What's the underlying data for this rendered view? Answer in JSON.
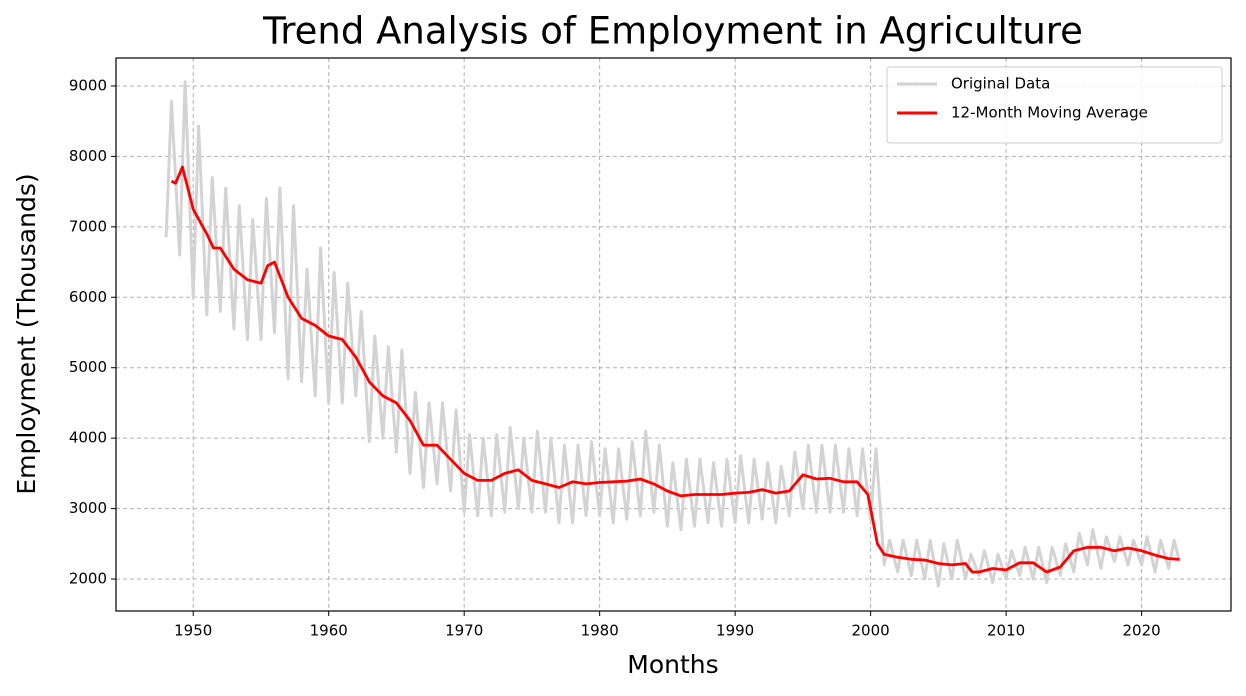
{
  "chart_data": {
    "type": "line",
    "title": "Trend Analysis of Employment in Agriculture",
    "xlabel": "Months",
    "ylabel": "Employment (Thousands)",
    "xlim": [
      1944.3,
      2026.6
    ],
    "xticks": [
      1950,
      1960,
      1970,
      1980,
      1990,
      2000,
      2010,
      2020
    ],
    "ylim": [
      1546,
      9397
    ],
    "yticks": [
      2000,
      3000,
      4000,
      5000,
      6000,
      7000,
      8000,
      9000
    ],
    "grid": true,
    "legend": "upper right",
    "series": [
      {
        "name": "Original Data",
        "color": "#d3d3d3",
        "x": [
          1948.0,
          1948.4,
          1949.0,
          1949.4,
          1950.0,
          1950.4,
          1951.0,
          1951.4,
          1952.0,
          1952.4,
          1953.0,
          1953.4,
          1954.0,
          1954.4,
          1955.0,
          1955.4,
          1956.0,
          1956.4,
          1957.0,
          1957.4,
          1958.0,
          1958.4,
          1959.0,
          1959.4,
          1960.0,
          1960.4,
          1961.0,
          1961.4,
          1962.0,
          1962.4,
          1963.0,
          1963.4,
          1964.0,
          1964.4,
          1965.0,
          1965.4,
          1966.0,
          1966.4,
          1967.0,
          1967.4,
          1968.0,
          1968.4,
          1969.0,
          1969.4,
          1970.0,
          1970.4,
          1971.0,
          1971.4,
          1972.0,
          1972.4,
          1973.0,
          1973.4,
          1974.0,
          1974.4,
          1975.0,
          1975.4,
          1976.0,
          1976.4,
          1977.0,
          1977.4,
          1978.0,
          1978.4,
          1979.0,
          1979.4,
          1980.0,
          1980.4,
          1981.0,
          1981.4,
          1982.0,
          1982.4,
          1983.0,
          1983.4,
          1984.0,
          1984.4,
          1985.0,
          1985.4,
          1986.0,
          1986.4,
          1987.0,
          1987.4,
          1988.0,
          1988.4,
          1989.0,
          1989.4,
          1990.0,
          1990.4,
          1991.0,
          1991.4,
          1992.0,
          1992.4,
          1993.0,
          1993.4,
          1994.0,
          1994.4,
          1995.0,
          1995.4,
          1996.0,
          1996.4,
          1997.0,
          1997.4,
          1998.0,
          1998.4,
          1999.0,
          1999.4,
          2000.0,
          2000.4,
          2001.0,
          2001.4,
          2002.0,
          2002.4,
          2003.0,
          2003.4,
          2004.0,
          2004.4,
          2005.0,
          2005.4,
          2006.0,
          2006.4,
          2007.0,
          2007.4,
          2008.0,
          2008.4,
          2009.0,
          2009.4,
          2010.0,
          2010.4,
          2011.0,
          2011.4,
          2012.0,
          2012.4,
          2013.0,
          2013.4,
          2014.0,
          2014.4,
          2015.0,
          2015.4,
          2016.0,
          2016.4,
          2017.0,
          2017.4,
          2018.0,
          2018.4,
          2019.0,
          2019.4,
          2020.0,
          2020.4,
          2021.0,
          2021.4,
          2022.0,
          2022.4,
          2022.8
        ],
        "values": [
          6850,
          8780,
          6600,
          9060,
          6000,
          8430,
          5750,
          7700,
          5800,
          7550,
          5550,
          7300,
          5400,
          7100,
          5400,
          7400,
          5500,
          7550,
          4850,
          7300,
          4800,
          6400,
          4600,
          6700,
          4500,
          6350,
          4500,
          6200,
          4600,
          5800,
          3950,
          5450,
          4000,
          5300,
          3800,
          5250,
          3500,
          4650,
          3300,
          4500,
          3350,
          4500,
          3250,
          4400,
          2950,
          4050,
          2900,
          4000,
          2900,
          4050,
          2950,
          4150,
          3000,
          4000,
          2950,
          4100,
          2950,
          4000,
          2800,
          3900,
          2800,
          3900,
          2900,
          3950,
          2900,
          3850,
          2800,
          3850,
          2850,
          3950,
          2900,
          4100,
          2950,
          3900,
          2750,
          3650,
          2700,
          3700,
          2750,
          3700,
          2800,
          3650,
          2750,
          3700,
          2800,
          3750,
          2800,
          3700,
          2850,
          3650,
          2800,
          3600,
          2900,
          3800,
          3000,
          3900,
          2950,
          3900,
          2950,
          3900,
          2950,
          3850,
          2900,
          3850,
          2850,
          3850,
          2200,
          2550,
          2100,
          2550,
          2050,
          2550,
          2000,
          2550,
          1900,
          2500,
          2000,
          2550,
          2000,
          2350,
          2050,
          2400,
          1950,
          2350,
          2000,
          2400,
          2050,
          2450,
          2000,
          2450,
          1950,
          2450,
          2050,
          2500,
          2100,
          2650,
          2200,
          2700,
          2150,
          2600,
          2250,
          2600,
          2200,
          2550,
          2200,
          2600,
          2100,
          2550,
          2150,
          2550,
          2250
        ]
      },
      {
        "name": "12-Month Moving Average",
        "color": "#ff0000",
        "x": [
          1948.4,
          1948.7,
          1949.2,
          1950.0,
          1951.0,
          1951.5,
          1952.0,
          1953.0,
          1954.0,
          1955.0,
          1955.5,
          1956.0,
          1957.0,
          1958.0,
          1959.0,
          1960.0,
          1961.0,
          1962.0,
          1963.0,
          1964.0,
          1965.0,
          1966.0,
          1967.0,
          1968.0,
          1969.0,
          1970.0,
          1971.0,
          1972.0,
          1973.0,
          1974.0,
          1975.0,
          1976.0,
          1977.0,
          1978.0,
          1979.0,
          1980.0,
          1981.0,
          1982.0,
          1983.0,
          1984.0,
          1985.0,
          1986.0,
          1987.0,
          1988.0,
          1989.0,
          1990.0,
          1991.0,
          1992.0,
          1993.0,
          1994.0,
          1995.0,
          1996.0,
          1997.0,
          1998.0,
          1999.0,
          1999.8,
          2000.5,
          2001.0,
          2002.0,
          2003.0,
          2004.0,
          2005.0,
          2006.0,
          2007.0,
          2007.5,
          2008.0,
          2009.0,
          2010.0,
          2011.0,
          2012.0,
          2013.0,
          2014.0,
          2015.0,
          2016.0,
          2017.0,
          2018.0,
          2019.0,
          2020.0,
          2021.0,
          2022.0,
          2022.8
        ],
        "values": [
          7650,
          7620,
          7850,
          7250,
          6900,
          6700,
          6700,
          6400,
          6250,
          6200,
          6450,
          6500,
          6000,
          5700,
          5600,
          5450,
          5400,
          5150,
          4800,
          4600,
          4500,
          4250,
          3900,
          3900,
          3700,
          3500,
          3400,
          3400,
          3500,
          3550,
          3400,
          3350,
          3300,
          3380,
          3350,
          3370,
          3380,
          3390,
          3420,
          3350,
          3250,
          3180,
          3200,
          3200,
          3200,
          3220,
          3230,
          3270,
          3220,
          3250,
          3480,
          3420,
          3430,
          3380,
          3380,
          3200,
          2500,
          2350,
          2310,
          2280,
          2270,
          2220,
          2200,
          2220,
          2100,
          2100,
          2150,
          2130,
          2230,
          2230,
          2100,
          2170,
          2400,
          2450,
          2450,
          2400,
          2440,
          2400,
          2340,
          2290,
          2280
        ]
      }
    ]
  }
}
